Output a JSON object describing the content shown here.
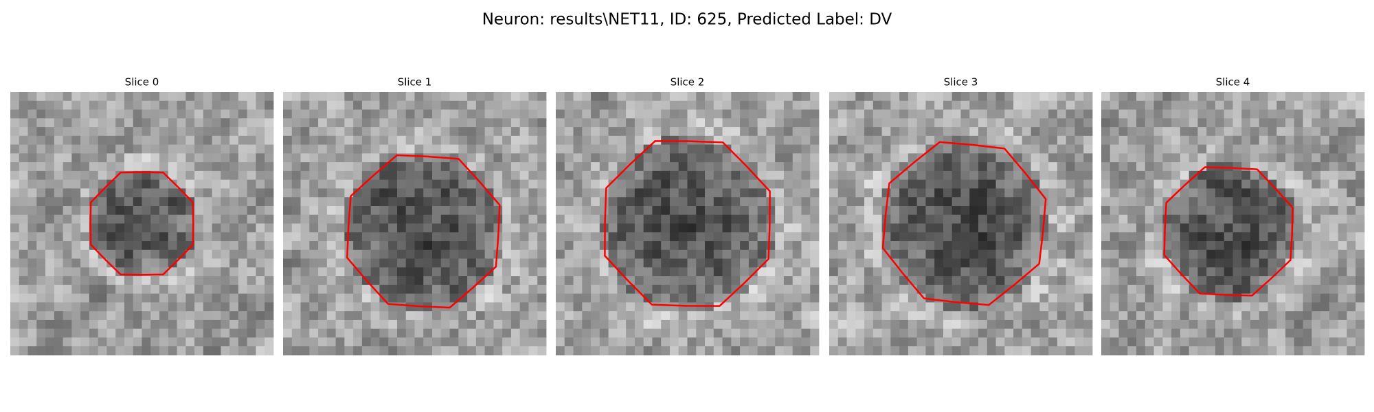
{
  "title": "Neuron: results\\NET11, ID: 625, Predicted Label: DV",
  "panels": [
    {
      "title": "Slice 0"
    },
    {
      "title": "Slice 1"
    },
    {
      "title": "Slice 2"
    },
    {
      "title": "Slice 3"
    },
    {
      "title": "Slice 4"
    }
  ]
}
